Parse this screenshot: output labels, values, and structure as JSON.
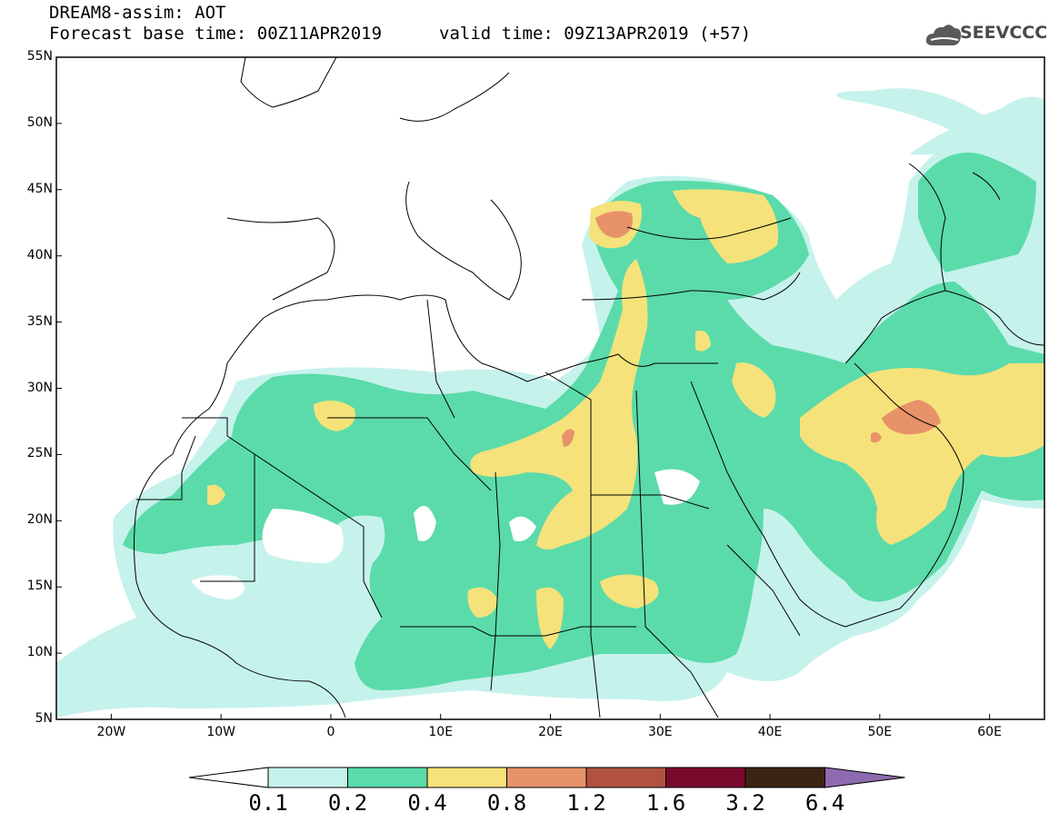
{
  "header": {
    "line1": "DREAM8-assim: AOT",
    "line2": "Forecast base time: 00Z11APR2019",
    "valid": "valid time: 09Z13APR2019 (+57)",
    "logo": "SEEVCCC"
  },
  "map": {
    "lat_labels": [
      "55N",
      "50N",
      "45N",
      "40N",
      "35N",
      "30N",
      "25N",
      "20N",
      "15N",
      "10N",
      "5N"
    ],
    "lon_labels": [
      "20W",
      "10W",
      "0",
      "10E",
      "20E",
      "30E",
      "40E",
      "50E",
      "60E"
    ],
    "extent": {
      "lon_min": -25,
      "lon_max": 65,
      "lat_min": 5,
      "lat_max": 55
    }
  },
  "colorbar": {
    "labels": [
      "0.1",
      "0.2",
      "0.4",
      "0.8",
      "1.2",
      "1.6",
      "3.2",
      "6.4"
    ],
    "colors": [
      "#c6f2ec",
      "#5bdbaa",
      "#f5e27a",
      "#e8926a",
      "#b0523f",
      "#7a0a2c",
      "#3c2414",
      "#8e6bb0"
    ]
  }
}
